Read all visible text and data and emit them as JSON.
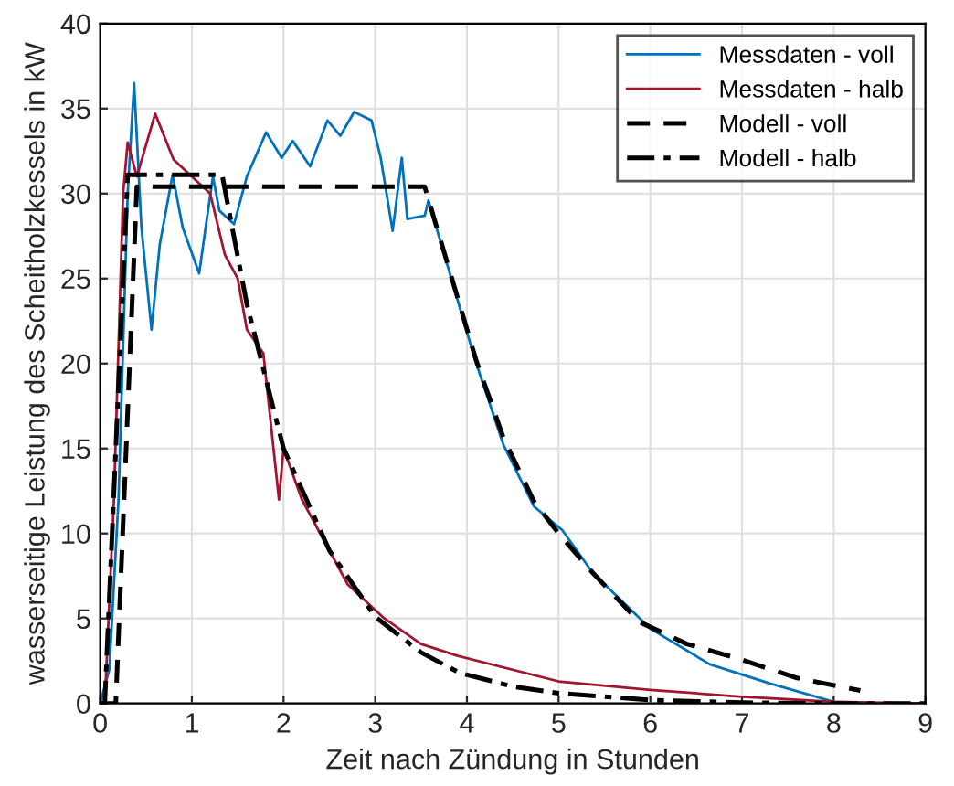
{
  "chart_data": {
    "type": "line",
    "xlabel": "Zeit nach Zündung in Stunden",
    "ylabel": "wasserseitige Leistung des Scheitholzkessels in kW",
    "xlim": [
      0,
      9
    ],
    "xticks": [
      0,
      1,
      2,
      3,
      4,
      5,
      6,
      7,
      8,
      9
    ],
    "ylim": [
      0,
      40
    ],
    "yticks": [
      0,
      5,
      10,
      15,
      20,
      25,
      30,
      35,
      40
    ],
    "grid": true,
    "legend": "top right",
    "marker": "none",
    "series": [
      {
        "name": "Messdaten - voll",
        "color": "#0072bd",
        "line_style": "solid",
        "x": [
          0,
          0.1,
          0.2,
          0.3,
          0.37,
          0.45,
          0.56,
          0.65,
          0.79,
          0.9,
          1.08,
          1.15,
          1.23,
          1.3,
          1.46,
          1.6,
          1.81,
          1.98,
          2.1,
          2.29,
          2.48,
          2.62,
          2.77,
          2.96,
          3.06,
          3.19,
          3.29,
          3.35,
          3.54,
          3.58,
          3.83,
          4.09,
          4.4,
          4.73,
          5.04,
          5.37,
          6.0,
          6.65,
          7.29,
          8.0,
          8.5,
          9
        ],
        "values": [
          0,
          2,
          12,
          30,
          36.5,
          28,
          22,
          27,
          31.1,
          28,
          25.3,
          28,
          31,
          29,
          28.2,
          31,
          33.6,
          32.1,
          33.1,
          31.6,
          34.3,
          33.4,
          34.8,
          34.3,
          32.1,
          27.8,
          32.1,
          28.5,
          28.7,
          29.6,
          25,
          20.2,
          15.2,
          11.6,
          10.2,
          7.7,
          4.4,
          2.3,
          1.2,
          0.1,
          0,
          0
        ]
      },
      {
        "name": "Messdaten - halb",
        "color": "#a2142f",
        "line_style": "solid",
        "x": [
          0,
          0.05,
          0.15,
          0.25,
          0.3,
          0.4,
          0.6,
          0.8,
          1.0,
          1.2,
          1.36,
          1.5,
          1.6,
          1.78,
          1.95,
          2.0,
          2.2,
          2.4,
          2.7,
          3.1,
          3.5,
          3.9,
          5.0,
          6.0,
          7.0,
          8.0,
          9.0
        ],
        "values": [
          0,
          0,
          12,
          30,
          33,
          31,
          34.7,
          32,
          31,
          30,
          26.4,
          25,
          22,
          20.6,
          12,
          15,
          12,
          10,
          7,
          5,
          3.5,
          2.8,
          1.3,
          0.8,
          0.4,
          0.1,
          0
        ]
      },
      {
        "name": "Modell - voll",
        "color": "#000000",
        "line_style": "dashed",
        "x": [
          0,
          0.17,
          0.4,
          3.54,
          4.1,
          4.4,
          4.73,
          5.0,
          5.37,
          5.88,
          6.4,
          6.98,
          7.6,
          8.29
        ],
        "values": [
          0,
          0,
          30.4,
          30.4,
          20.2,
          15.6,
          11.9,
          10,
          7.7,
          4.8,
          3.5,
          2.6,
          1.5,
          0.76
        ]
      },
      {
        "name": "Modell - halb",
        "color": "#000000",
        "line_style": "dashdot",
        "x": [
          0,
          0.05,
          0.3,
          1.33,
          1.6,
          2.0,
          2.5,
          3.0,
          3.5,
          3.92,
          4.5,
          5.0,
          6.0,
          7.0,
          8.0,
          9.0
        ],
        "values": [
          0,
          0,
          31.1,
          31.1,
          23.5,
          15,
          9,
          5.1,
          3,
          1.8,
          1.0,
          0.6,
          0.2,
          0.05,
          0,
          0
        ]
      }
    ]
  }
}
